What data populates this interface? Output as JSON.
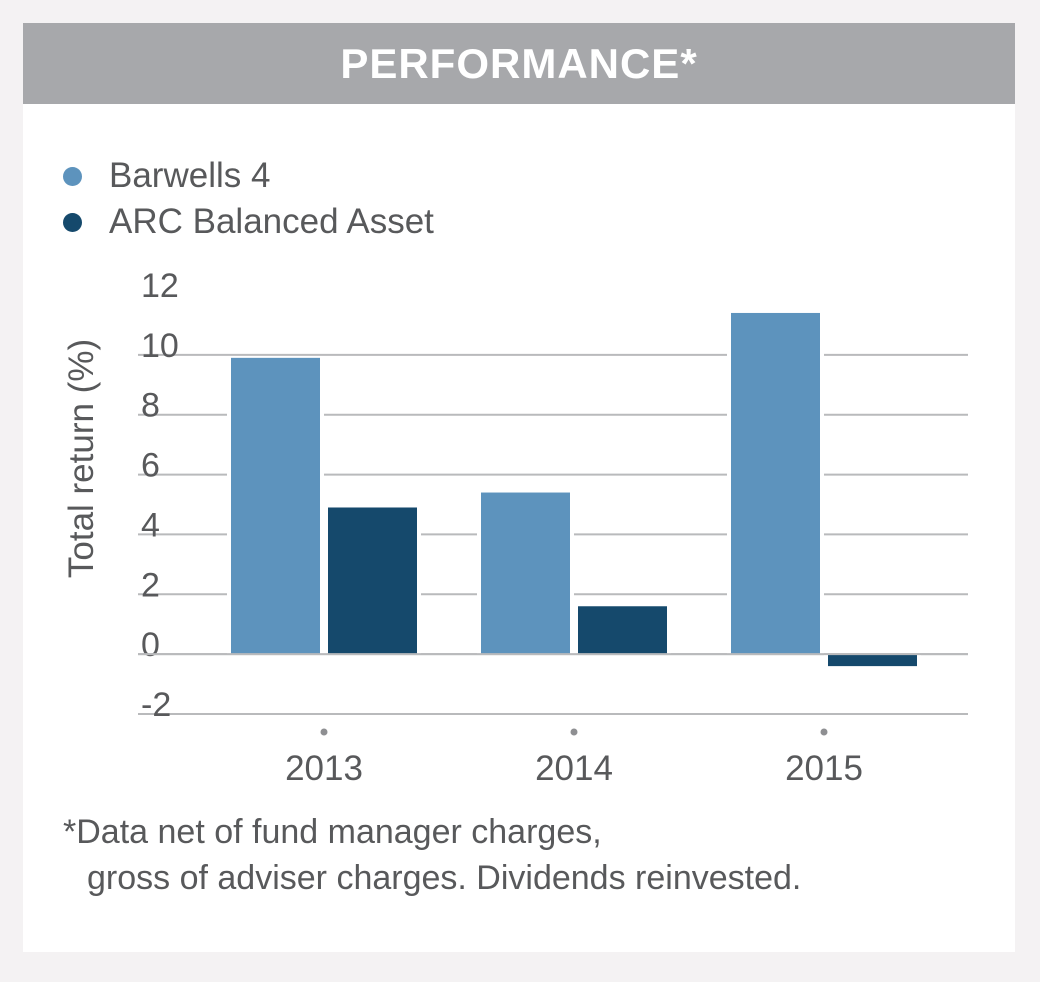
{
  "header": {
    "title": "PERFORMANCE*"
  },
  "colors": {
    "header_bg": "#a7a8ab",
    "series_1": "#5d93bd",
    "series_2": "#15496c",
    "grid": "#b9babc",
    "text": "#58595b"
  },
  "chart_data": {
    "type": "bar",
    "categories": [
      "2013",
      "2014",
      "2015"
    ],
    "series": [
      {
        "name": "Barwells 4",
        "color": "#5d93bd",
        "values": [
          9.9,
          5.4,
          11.4
        ]
      },
      {
        "name": "ARC Balanced Asset",
        "color": "#15496c",
        "values": [
          4.9,
          1.6,
          -0.4
        ]
      }
    ],
    "ylabel": "Total return (%)",
    "xlabel": "",
    "ylim": [
      -2,
      12
    ],
    "yticks": [
      12,
      10,
      8,
      6,
      4,
      2,
      0,
      -2
    ],
    "grid": true,
    "legend_position": "top-left"
  },
  "footnote": {
    "line1": "*Data net of fund manager charges,",
    "line2": "gross of adviser charges. Dividends reinvested."
  }
}
